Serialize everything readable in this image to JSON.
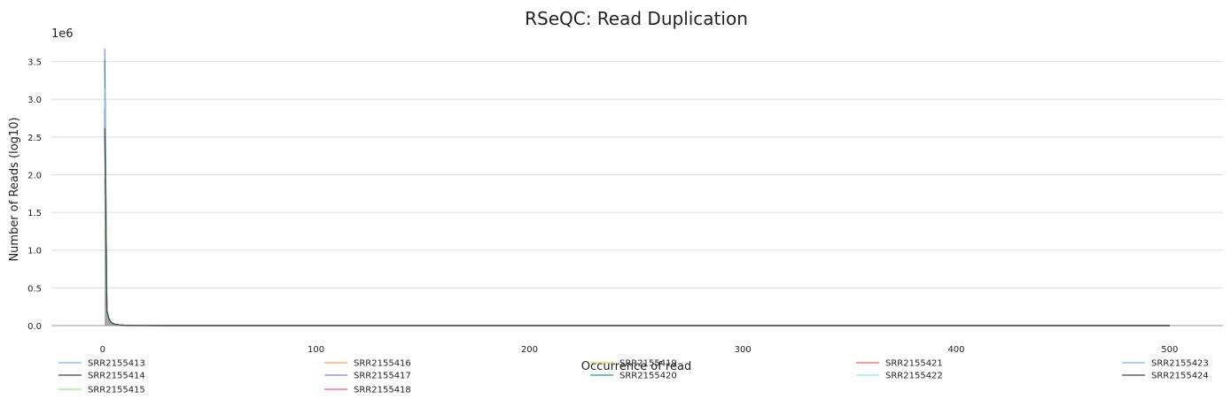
{
  "chart_data": {
    "type": "line",
    "title": "RSeQC: Read Duplication",
    "xlabel": "Occurrence of read",
    "ylabel": "Number of Reads (log10)",
    "y_offset_label": "1e6",
    "xlim": [
      -24,
      525
    ],
    "ylim": [
      0,
      3.8
    ],
    "x_ticks": [
      0,
      100,
      200,
      300,
      400,
      500
    ],
    "y_ticks": [
      0.0,
      0.5,
      1.0,
      1.5,
      2.0,
      2.5,
      3.0,
      3.5
    ],
    "grid": "horizontal",
    "legend_position": "bottom",
    "x": [
      1,
      2,
      3,
      4,
      5,
      6,
      8,
      10,
      15,
      20,
      30,
      50,
      100,
      200,
      300,
      400,
      500
    ],
    "series": [
      {
        "name": "SRR2155413",
        "color": "#7cb5ec",
        "values": [
          3.08,
          0.16,
          0.07,
          0.035,
          0.02,
          0.013,
          0.007,
          0.004,
          0.0015,
          0.0008,
          0.0003,
          0.0001,
          3e-05,
          1e-05,
          0.0,
          0.0,
          0.0
        ]
      },
      {
        "name": "SRR2155414",
        "color": "#434348",
        "values": [
          2.88,
          0.2,
          0.09,
          0.045,
          0.026,
          0.017,
          0.009,
          0.005,
          0.002,
          0.001,
          0.0004,
          0.0001,
          3e-05,
          1e-05,
          0.0,
          0.0,
          0.0
        ]
      },
      {
        "name": "SRR2155415",
        "color": "#90ed7d",
        "values": [
          1.28,
          0.1,
          0.045,
          0.025,
          0.015,
          0.01,
          0.005,
          0.003,
          0.001,
          0.0005,
          0.0002,
          0.0001,
          2e-05,
          0.0,
          0.0,
          0.0,
          0.0
        ]
      },
      {
        "name": "SRR2155416",
        "color": "#f7a35c",
        "values": [
          1.95,
          0.14,
          0.06,
          0.03,
          0.018,
          0.012,
          0.006,
          0.0035,
          0.0013,
          0.0007,
          0.0002,
          0.0001,
          2e-05,
          0.0,
          0.0,
          0.0,
          0.0
        ]
      },
      {
        "name": "SRR2155417",
        "color": "#8085e9",
        "values": [
          3.67,
          0.19,
          0.08,
          0.04,
          0.024,
          0.016,
          0.008,
          0.0045,
          0.0017,
          0.0009,
          0.0003,
          0.0001,
          3e-05,
          1e-05,
          0.0,
          0.0,
          0.0
        ]
      },
      {
        "name": "SRR2155418",
        "color": "#f15c80",
        "values": [
          2.55,
          0.17,
          0.075,
          0.038,
          0.022,
          0.014,
          0.007,
          0.004,
          0.0015,
          0.0008,
          0.0003,
          0.0001,
          2e-05,
          0.0,
          0.0,
          0.0,
          0.0
        ]
      },
      {
        "name": "SRR2155419",
        "color": "#e4d354",
        "values": [
          1.85,
          0.13,
          0.055,
          0.028,
          0.017,
          0.011,
          0.0055,
          0.003,
          0.0012,
          0.0006,
          0.0002,
          0.0001,
          2e-05,
          0.0,
          0.0,
          0.0,
          0.0
        ]
      },
      {
        "name": "SRR2155420",
        "color": "#2b908f",
        "values": [
          3.52,
          0.21,
          0.09,
          0.045,
          0.026,
          0.017,
          0.009,
          0.005,
          0.0019,
          0.001,
          0.0003,
          0.0001,
          3e-05,
          1e-05,
          0.0,
          0.0,
          0.0
        ]
      },
      {
        "name": "SRR2155421",
        "color": "#f45b5b",
        "values": [
          2.7,
          0.18,
          0.08,
          0.04,
          0.023,
          0.015,
          0.0075,
          0.0042,
          0.0016,
          0.0008,
          0.0003,
          0.0001,
          2e-05,
          0.0,
          0.0,
          0.0,
          0.0
        ]
      },
      {
        "name": "SRR2155422",
        "color": "#91e8e1",
        "values": [
          2.35,
          0.15,
          0.065,
          0.033,
          0.02,
          0.013,
          0.0065,
          0.0037,
          0.0014,
          0.0007,
          0.0002,
          0.0001,
          2e-05,
          0.0,
          0.0,
          0.0,
          0.0
        ]
      },
      {
        "name": "SRR2155423",
        "color": "#7cb5ec",
        "values": [
          3.15,
          0.17,
          0.075,
          0.037,
          0.022,
          0.014,
          0.007,
          0.004,
          0.0015,
          0.0008,
          0.0003,
          0.0001,
          3e-05,
          1e-05,
          0.0,
          0.0,
          0.0
        ]
      },
      {
        "name": "SRR2155424",
        "color": "#434348",
        "values": [
          2.62,
          0.19,
          0.085,
          0.042,
          0.025,
          0.016,
          0.008,
          0.0045,
          0.0017,
          0.0009,
          0.0003,
          0.0001,
          3e-05,
          1e-05,
          0.0,
          0.0,
          0.0
        ]
      }
    ]
  }
}
